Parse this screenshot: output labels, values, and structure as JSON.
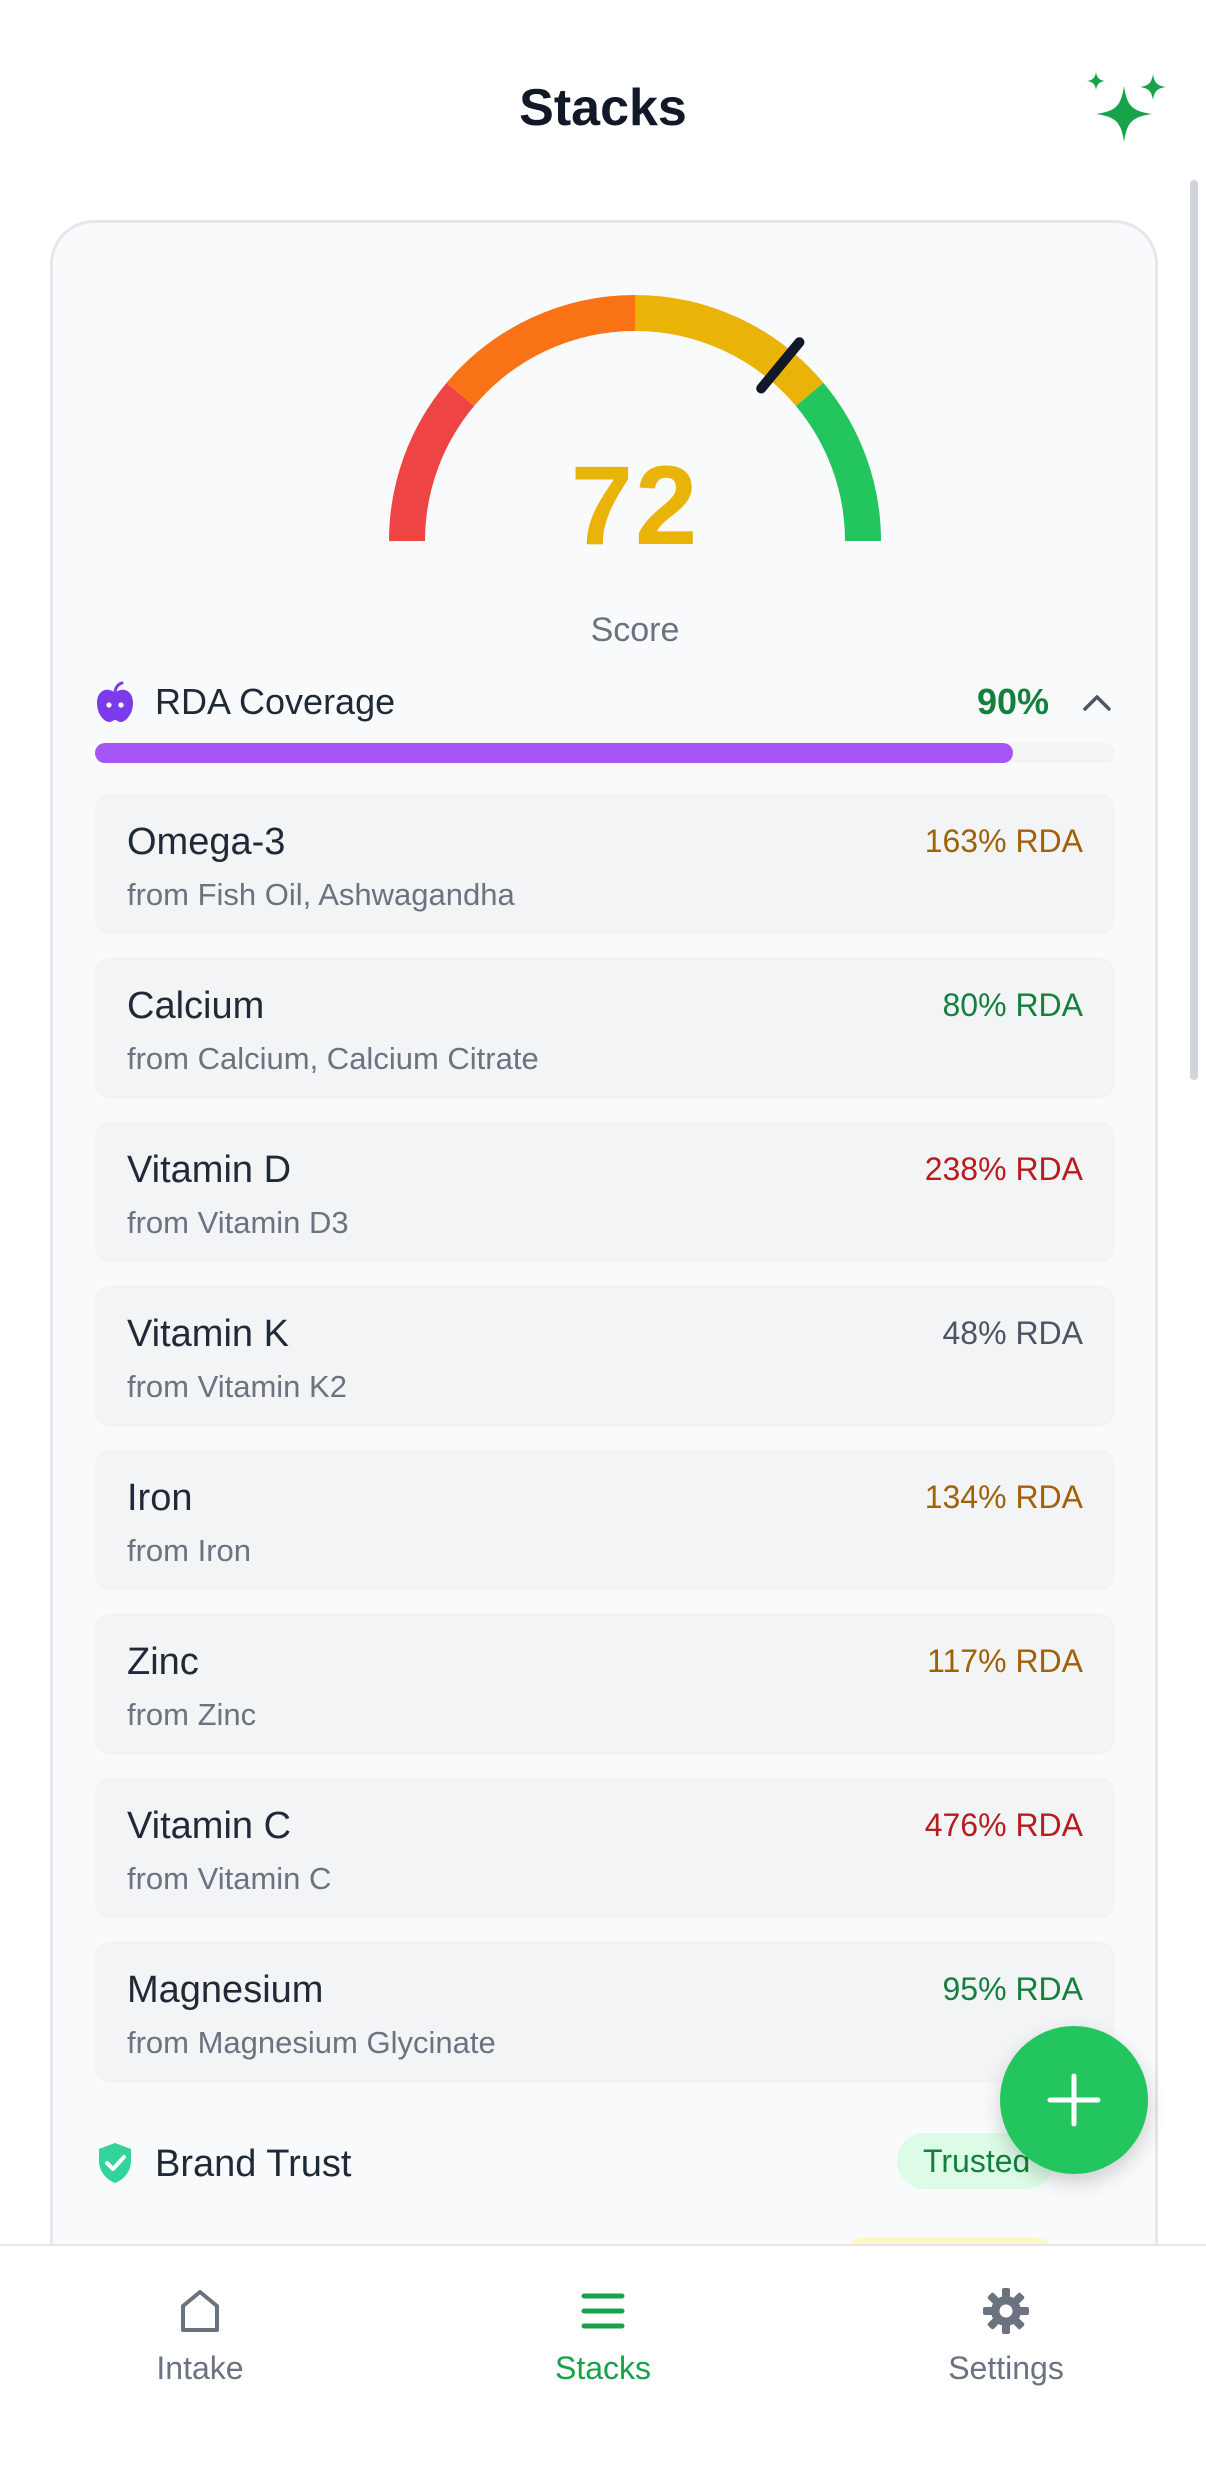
{
  "header": {
    "title": "Stacks"
  },
  "score": {
    "value": "72",
    "label": "Score",
    "gauge_fraction": 0.72,
    "colors": [
      "#ef4444",
      "#f97316",
      "#eab308",
      "#22c55e"
    ]
  },
  "rda": {
    "title": "RDA Coverage",
    "coverage": "90%",
    "coverage_fraction": 0.9,
    "bar_color": "#a855f7",
    "items": [
      {
        "name": "Omega-3",
        "source": "from Fish Oil, Ashwagandha",
        "rda": "163% RDA",
        "color": "#a16207"
      },
      {
        "name": "Calcium",
        "source": "from Calcium, Calcium Citrate",
        "rda": "80% RDA",
        "color": "#15803d"
      },
      {
        "name": "Vitamin D",
        "source": "from Vitamin D3",
        "rda": "238% RDA",
        "color": "#b91c1c"
      },
      {
        "name": "Vitamin K",
        "source": "from Vitamin K2",
        "rda": "48% RDA",
        "color": "#4b5563"
      },
      {
        "name": "Iron",
        "source": "from Iron",
        "rda": "134% RDA",
        "color": "#a16207"
      },
      {
        "name": "Zinc",
        "source": "from Zinc",
        "rda": "117% RDA",
        "color": "#a16207"
      },
      {
        "name": "Vitamin C",
        "source": "from Vitamin C",
        "rda": "476% RDA",
        "color": "#b91c1c"
      },
      {
        "name": "Magnesium",
        "source": "from Magnesium Glycinate",
        "rda": "95% RDA",
        "color": "#15803d"
      }
    ]
  },
  "brand": {
    "title": "Brand Trust",
    "badge": "Trusted"
  },
  "nav": {
    "items": [
      {
        "label": "Intake",
        "icon": "home-icon"
      },
      {
        "label": "Stacks",
        "icon": "stacks-icon"
      },
      {
        "label": "Settings",
        "icon": "gear-icon"
      }
    ],
    "active": "Stacks"
  },
  "icons": {
    "header_action": "sparkles-icon",
    "section": "apple-icon",
    "collapse": "chevron-up-icon",
    "brand": "shield-check-icon",
    "fab": "plus-icon"
  }
}
